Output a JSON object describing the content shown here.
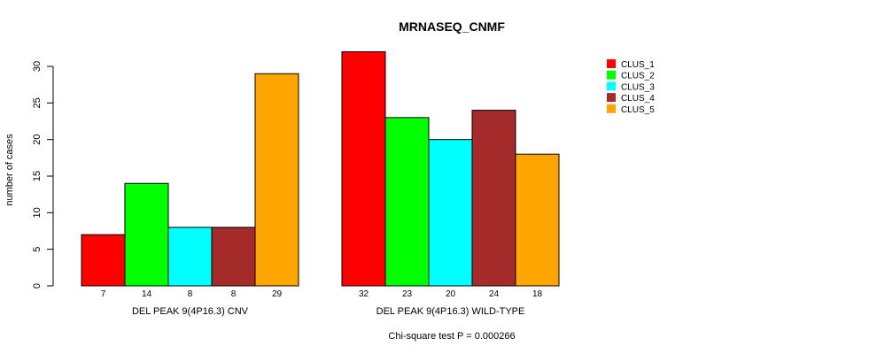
{
  "chart_data": {
    "type": "bar",
    "title": "MRNASEQ_CNMF",
    "ylabel": "number of cases",
    "ylim": [
      0,
      30
    ],
    "yticks": [
      0,
      5,
      10,
      15,
      20,
      25,
      30
    ],
    "groups": [
      {
        "label": "DEL PEAK  9(4P16.3) CNV",
        "values": [
          7,
          14,
          8,
          8,
          29
        ],
        "count_labels": [
          "7",
          "14",
          "8",
          "8",
          "29"
        ]
      },
      {
        "label": "DEL PEAK  9(4P16.3) WILD-TYPE",
        "values": [
          32,
          23,
          20,
          24,
          18
        ],
        "count_labels": [
          "32",
          "23",
          "20",
          "24",
          "18"
        ]
      }
    ],
    "series": [
      {
        "name": "CLUS_1",
        "color": "#ff0000"
      },
      {
        "name": "CLUS_2",
        "color": "#00ff00"
      },
      {
        "name": "CLUS_3",
        "color": "#00ffff"
      },
      {
        "name": "CLUS_4",
        "color": "#a52a2a"
      },
      {
        "name": "CLUS_5",
        "color": "#ffa500"
      }
    ],
    "legend_position": "top-right",
    "footnote": "Chi-square test P = 0.000266"
  }
}
